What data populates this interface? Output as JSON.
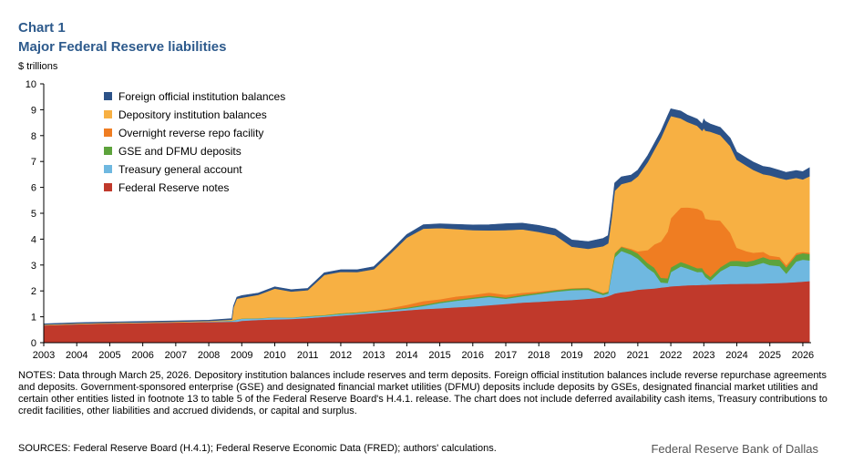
{
  "header": {
    "chart_number": "Chart 1",
    "title": "Major Federal Reserve liabilities",
    "unit": "$ trillions"
  },
  "footer": {
    "notes": "NOTES: Data through March 25, 2026. Depository institution balances include reserves and term deposits. Foreign official institution balances include reverse repurchase agreements and deposits. Government-sponsored enterprise (GSE) and designated financial market utilities (DFMU) deposits include deposits by GSEs, designated financial market utilities and certain other entities listed in footnote 13 to table 5 of the Federal Reserve Board's H.4.1. release. The chart does not include deferred availability cash items, Treasury contributions to credit facilities, other liabilities and accrued dividends, or capital and surplus.",
    "sources": "SOURCES: Federal Reserve Board (H.4.1); Federal Reserve Economic Data (FRED); authors' calculations.",
    "brand": "Federal Reserve Bank of Dallas"
  },
  "chart_data": {
    "type": "area",
    "stacked": true,
    "x_unit": "year",
    "xlim": [
      2003,
      2026.25
    ],
    "ylim": [
      0,
      10
    ],
    "ylabel": "$ trillions",
    "x_ticks": [
      "2003",
      "2004",
      "2005",
      "2006",
      "2007",
      "2008",
      "2009",
      "2010",
      "2011",
      "2012",
      "2013",
      "2014",
      "2015",
      "2016",
      "2017",
      "2018",
      "2019",
      "2020",
      "2021",
      "2022",
      "2023",
      "2024",
      "2025",
      "2026"
    ],
    "y_ticks": [
      "0",
      "1",
      "2",
      "3",
      "4",
      "5",
      "6",
      "7",
      "8",
      "9",
      "10"
    ],
    "legend_position": "top-left",
    "grid": false,
    "x": [
      2003,
      2004,
      2005,
      2006,
      2007,
      2008,
      2008.7,
      2008.75,
      2008.85,
      2009,
      2009.5,
      2010,
      2010.5,
      2011,
      2011.5,
      2012,
      2012.5,
      2013,
      2013.5,
      2014,
      2014.5,
      2015,
      2015.5,
      2016,
      2016.5,
      2017,
      2017.5,
      2018,
      2018.5,
      2019,
      2019.5,
      2019.95,
      2020.1,
      2020.2,
      2020.3,
      2020.5,
      2020.8,
      2021,
      2021.3,
      2021.5,
      2021.7,
      2021.9,
      2022,
      2022.3,
      2022.5,
      2022.8,
      2022.95,
      2023,
      2023.05,
      2023.2,
      2023.5,
      2023.8,
      2024,
      2024.3,
      2024.5,
      2024.8,
      2025,
      2025.3,
      2025.5,
      2025.8,
      2026,
      2026.2
    ],
    "series": [
      {
        "name": "Federal Reserve notes",
        "color": "#c0392b",
        "values": [
          0.67,
          0.71,
          0.74,
          0.76,
          0.78,
          0.8,
          0.81,
          0.81,
          0.81,
          0.85,
          0.88,
          0.9,
          0.92,
          0.95,
          1.0,
          1.05,
          1.1,
          1.15,
          1.2,
          1.25,
          1.3,
          1.33,
          1.37,
          1.4,
          1.45,
          1.5,
          1.55,
          1.58,
          1.62,
          1.65,
          1.7,
          1.75,
          1.8,
          1.85,
          1.9,
          1.95,
          2.0,
          2.05,
          2.08,
          2.1,
          2.13,
          2.16,
          2.18,
          2.2,
          2.22,
          2.23,
          2.24,
          2.24,
          2.24,
          2.25,
          2.26,
          2.27,
          2.27,
          2.28,
          2.28,
          2.29,
          2.3,
          2.31,
          2.32,
          2.34,
          2.36,
          2.38
        ]
      },
      {
        "name": "Treasury general account",
        "color": "#6fb8e0",
        "values": [
          0.01,
          0.01,
          0.01,
          0.01,
          0.01,
          0.02,
          0.04,
          0.05,
          0.08,
          0.08,
          0.06,
          0.08,
          0.05,
          0.06,
          0.05,
          0.06,
          0.05,
          0.06,
          0.06,
          0.07,
          0.12,
          0.2,
          0.25,
          0.3,
          0.32,
          0.2,
          0.25,
          0.3,
          0.35,
          0.38,
          0.35,
          0.1,
          0.1,
          0.8,
          1.4,
          1.6,
          1.4,
          1.2,
          0.8,
          0.6,
          0.2,
          0.15,
          0.55,
          0.75,
          0.65,
          0.5,
          0.5,
          0.4,
          0.3,
          0.15,
          0.5,
          0.7,
          0.7,
          0.65,
          0.7,
          0.8,
          0.7,
          0.65,
          0.35,
          0.8,
          0.85,
          0.8
        ]
      },
      {
        "name": "GSE and DFMU deposits",
        "color": "#5da33c",
        "values": [
          0.0,
          0.0,
          0.0,
          0.0,
          0.0,
          0.0,
          0.01,
          0.01,
          0.01,
          0.01,
          0.01,
          0.01,
          0.01,
          0.02,
          0.02,
          0.03,
          0.03,
          0.03,
          0.03,
          0.04,
          0.04,
          0.05,
          0.05,
          0.05,
          0.05,
          0.05,
          0.05,
          0.05,
          0.05,
          0.06,
          0.06,
          0.06,
          0.07,
          0.1,
          0.15,
          0.15,
          0.18,
          0.2,
          0.2,
          0.2,
          0.18,
          0.18,
          0.18,
          0.17,
          0.16,
          0.15,
          0.15,
          0.15,
          0.15,
          0.15,
          0.16,
          0.18,
          0.2,
          0.2,
          0.2,
          0.22,
          0.22,
          0.25,
          0.25,
          0.25,
          0.25,
          0.25
        ]
      },
      {
        "name": "Overnight reverse repo facility",
        "color": "#ef7d22",
        "values": [
          0.0,
          0.0,
          0.0,
          0.0,
          0.0,
          0.0,
          0.0,
          0.0,
          0.0,
          0.0,
          0.0,
          0.0,
          0.0,
          0.0,
          0.0,
          0.0,
          0.0,
          0.0,
          0.05,
          0.1,
          0.15,
          0.1,
          0.12,
          0.1,
          0.12,
          0.1,
          0.08,
          0.05,
          0.03,
          0.02,
          0.02,
          0.02,
          0.02,
          0.02,
          0.02,
          0.03,
          0.05,
          0.08,
          0.5,
          0.9,
          1.4,
          1.8,
          1.9,
          2.1,
          2.2,
          2.3,
          2.2,
          2.2,
          2.1,
          2.2,
          1.8,
          1.1,
          0.5,
          0.4,
          0.3,
          0.2,
          0.15,
          0.1,
          0.08,
          0.08,
          0.05,
          0.05
        ]
      },
      {
        "name": "Depository institution balances",
        "color": "#f7b043",
        "values": [
          0.02,
          0.02,
          0.02,
          0.02,
          0.02,
          0.02,
          0.03,
          0.5,
          0.8,
          0.8,
          0.9,
          1.1,
          1.0,
          1.0,
          1.55,
          1.6,
          1.55,
          1.6,
          2.1,
          2.6,
          2.8,
          2.75,
          2.6,
          2.5,
          2.4,
          2.5,
          2.45,
          2.3,
          2.1,
          1.6,
          1.5,
          1.8,
          1.85,
          2.0,
          2.4,
          2.4,
          2.6,
          2.9,
          3.4,
          3.65,
          4.0,
          4.2,
          3.95,
          3.45,
          3.3,
          3.2,
          3.1,
          3.3,
          3.4,
          3.4,
          3.3,
          3.35,
          3.4,
          3.3,
          3.2,
          3.0,
          3.1,
          3.05,
          3.3,
          2.9,
          2.8,
          2.95
        ]
      },
      {
        "name": "Foreign official institution balances",
        "color": "#2c5288",
        "values": [
          0.03,
          0.03,
          0.03,
          0.03,
          0.03,
          0.03,
          0.04,
          0.05,
          0.06,
          0.08,
          0.07,
          0.07,
          0.07,
          0.07,
          0.08,
          0.08,
          0.09,
          0.1,
          0.1,
          0.12,
          0.15,
          0.16,
          0.18,
          0.2,
          0.22,
          0.25,
          0.24,
          0.25,
          0.25,
          0.26,
          0.28,
          0.3,
          0.3,
          0.3,
          0.3,
          0.28,
          0.25,
          0.24,
          0.25,
          0.25,
          0.26,
          0.27,
          0.28,
          0.28,
          0.27,
          0.26,
          0.26,
          0.35,
          0.36,
          0.3,
          0.3,
          0.3,
          0.3,
          0.3,
          0.3,
          0.3,
          0.3,
          0.3,
          0.28,
          0.28,
          0.3,
          0.33
        ]
      }
    ]
  }
}
